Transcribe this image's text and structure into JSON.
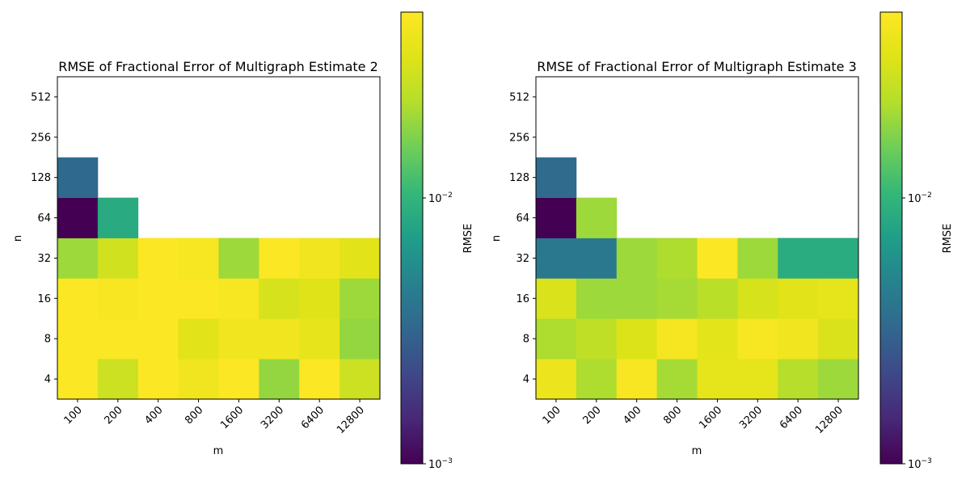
{
  "chart_data": [
    {
      "type": "heatmap",
      "title": "RMSE of Fractional Error of Multigraph Estimate 2",
      "xlabel": "m",
      "ylabel": "n",
      "x_categories": [
        "100",
        "200",
        "400",
        "800",
        "1600",
        "3200",
        "6400",
        "12800"
      ],
      "y_categories": [
        "4",
        "8",
        "16",
        "32",
        "64",
        "128",
        "256",
        "512"
      ],
      "values": [
        [
          0.049,
          0.028,
          0.049,
          0.042,
          0.049,
          0.019,
          0.049,
          0.028
        ],
        [
          0.049,
          0.049,
          0.049,
          0.035,
          0.043,
          0.042,
          0.038,
          0.019
        ],
        [
          0.049,
          0.047,
          0.049,
          0.049,
          0.046,
          0.031,
          0.034,
          0.02
        ],
        [
          0.02,
          0.029,
          0.049,
          0.046,
          0.02,
          0.049,
          0.043,
          0.035
        ],
        [
          0.001,
          0.0085,
          null,
          null,
          null,
          null,
          null,
          null
        ],
        [
          0.0033,
          null,
          null,
          null,
          null,
          null,
          null,
          null
        ],
        [
          null,
          null,
          null,
          null,
          null,
          null,
          null,
          null
        ],
        [
          null,
          null,
          null,
          null,
          null,
          null,
          null,
          null
        ]
      ],
      "colorbar": {
        "label": "RMSE",
        "scale": "log",
        "min": 0.001,
        "max": 0.05,
        "colormap": "viridis",
        "ticks": [
          {
            "value": 0.001,
            "base": "10",
            "exp": "−3"
          },
          {
            "value": 0.01,
            "base": "10",
            "exp": "−2"
          }
        ]
      }
    },
    {
      "type": "heatmap",
      "title": "RMSE of Fractional Error of Multigraph Estimate 3",
      "xlabel": "m",
      "ylabel": "n",
      "x_categories": [
        "100",
        "200",
        "400",
        "800",
        "1600",
        "3200",
        "6400",
        "12800"
      ],
      "y_categories": [
        "4",
        "8",
        "16",
        "32",
        "64",
        "128",
        "256",
        "512"
      ],
      "values": [
        [
          0.04,
          0.022,
          0.047,
          0.021,
          0.037,
          0.037,
          0.023,
          0.02
        ],
        [
          0.022,
          0.025,
          0.033,
          0.045,
          0.036,
          0.046,
          0.043,
          0.032
        ],
        [
          0.032,
          0.02,
          0.02,
          0.021,
          0.024,
          0.031,
          0.035,
          0.037
        ],
        [
          0.0041,
          0.0041,
          0.02,
          0.022,
          0.049,
          0.02,
          0.0088,
          0.0088
        ],
        [
          0.001,
          0.02,
          null,
          null,
          null,
          null,
          null,
          null
        ],
        [
          0.0034,
          null,
          null,
          null,
          null,
          null,
          null,
          null
        ],
        [
          null,
          null,
          null,
          null,
          null,
          null,
          null,
          null
        ],
        [
          null,
          null,
          null,
          null,
          null,
          null,
          null,
          null
        ]
      ],
      "colorbar": {
        "label": "RMSE",
        "scale": "log",
        "min": 0.001,
        "max": 0.05,
        "colormap": "viridis",
        "ticks": [
          {
            "value": 0.001,
            "base": "10",
            "exp": "−3"
          },
          {
            "value": 0.01,
            "base": "10",
            "exp": "−2"
          }
        ]
      }
    }
  ]
}
